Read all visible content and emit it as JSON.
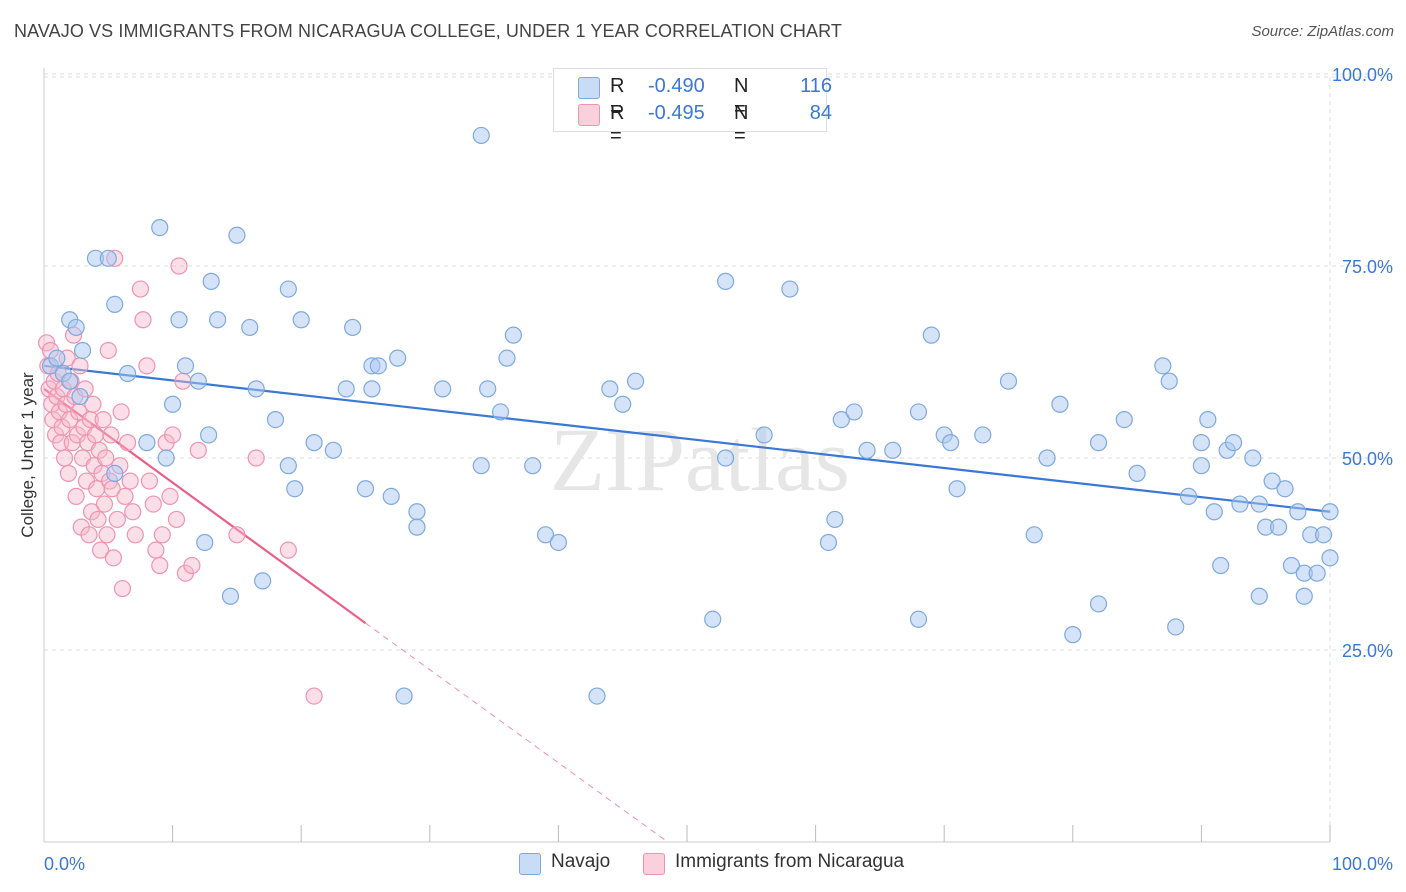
{
  "title": "NAVAJO VS IMMIGRANTS FROM NICARAGUA COLLEGE, UNDER 1 YEAR CORRELATION CHART",
  "source": "Source: ZipAtlas.com",
  "watermark": "ZIPatlas",
  "legend": {
    "rows": [
      {
        "r_label": "R =",
        "r_value": "-0.490",
        "n_label": "N =",
        "n_value": "116"
      },
      {
        "r_label": "R =",
        "r_value": "-0.495",
        "n_label": "N =",
        "n_value": "84"
      }
    ]
  },
  "bottom_legend": {
    "navajo": "Navajo",
    "nicaragua": "Immigrants from Nicaragua"
  },
  "colors": {
    "navajo_fill": "#aac8f0",
    "navajo_stroke": "#7ea9df",
    "navajo_line": "#3a78d6",
    "nic_fill": "#f7b9cb",
    "nic_stroke": "#ef93af",
    "nic_line": "#e8608a",
    "grid": "#dddddd",
    "tick_label": "#3a78d6"
  },
  "chart_data": {
    "type": "scatter",
    "title": "NAVAJO VS IMMIGRANTS FROM NICARAGUA COLLEGE, UNDER 1 YEAR CORRELATION CHART",
    "xlabel": "",
    "ylabel": "College, Under 1 year",
    "xlim": [
      0,
      100
    ],
    "ylim": [
      0,
      105
    ],
    "x_tick_labels": [
      "0.0%",
      "100.0%"
    ],
    "y_ticks": [
      25,
      50,
      75,
      100
    ],
    "y_tick_labels": [
      "25.0%",
      "50.0%",
      "75.0%",
      "100.0%"
    ],
    "grid": true,
    "legend_position": "top-center",
    "series": [
      {
        "name": "Navajo",
        "points": [
          [
            0.5,
            62
          ],
          [
            1,
            63
          ],
          [
            1.5,
            61
          ],
          [
            2,
            60
          ],
          [
            2,
            68
          ],
          [
            2.5,
            67
          ],
          [
            2.8,
            58
          ],
          [
            3,
            64
          ],
          [
            4,
            76
          ],
          [
            5,
            76
          ],
          [
            5.5,
            70
          ],
          [
            5.5,
            48
          ],
          [
            6.5,
            61
          ],
          [
            8,
            52
          ],
          [
            9,
            80
          ],
          [
            9.5,
            50
          ],
          [
            10,
            57
          ],
          [
            10.5,
            68
          ],
          [
            11,
            62
          ],
          [
            12,
            60
          ],
          [
            12.5,
            39
          ],
          [
            12.8,
            53
          ],
          [
            13,
            73
          ],
          [
            13.5,
            68
          ],
          [
            14.5,
            32
          ],
          [
            15,
            79
          ],
          [
            16,
            67
          ],
          [
            16.5,
            59
          ],
          [
            17,
            34
          ],
          [
            18,
            55
          ],
          [
            19,
            72
          ],
          [
            19,
            49
          ],
          [
            19.5,
            46
          ],
          [
            20,
            68
          ],
          [
            21,
            52
          ],
          [
            22.5,
            51
          ],
          [
            23.5,
            59
          ],
          [
            24,
            67
          ],
          [
            25,
            46
          ],
          [
            25.5,
            59
          ],
          [
            25.5,
            62
          ],
          [
            26,
            62
          ],
          [
            27,
            45
          ],
          [
            27.5,
            63
          ],
          [
            28,
            19
          ],
          [
            29,
            43
          ],
          [
            29,
            41
          ],
          [
            31,
            59
          ],
          [
            34,
            92
          ],
          [
            34,
            49
          ],
          [
            34.5,
            59
          ],
          [
            35.5,
            56
          ],
          [
            36,
            63
          ],
          [
            36.5,
            66
          ],
          [
            38,
            49
          ],
          [
            39,
            40
          ],
          [
            40,
            39
          ],
          [
            43,
            19
          ],
          [
            44,
            59
          ],
          [
            45,
            57
          ],
          [
            46,
            60
          ],
          [
            52,
            29
          ],
          [
            53,
            50
          ],
          [
            53,
            73
          ],
          [
            56,
            53
          ],
          [
            58,
            72
          ],
          [
            61,
            39
          ],
          [
            61.5,
            42
          ],
          [
            62,
            55
          ],
          [
            63,
            56
          ],
          [
            64,
            51
          ],
          [
            66,
            51
          ],
          [
            68,
            56
          ],
          [
            68,
            29
          ],
          [
            69,
            66
          ],
          [
            70,
            53
          ],
          [
            70.5,
            52
          ],
          [
            71,
            46
          ],
          [
            73,
            53
          ],
          [
            75,
            60
          ],
          [
            77,
            40
          ],
          [
            78,
            50
          ],
          [
            79,
            57
          ],
          [
            80,
            27
          ],
          [
            82,
            52
          ],
          [
            82,
            31
          ],
          [
            84,
            55
          ],
          [
            85,
            48
          ],
          [
            87,
            62
          ],
          [
            87.5,
            60
          ],
          [
            88,
            28
          ],
          [
            89,
            45
          ],
          [
            90,
            52
          ],
          [
            90,
            49
          ],
          [
            90.5,
            55
          ],
          [
            91,
            43
          ],
          [
            91.5,
            36
          ],
          [
            92,
            51
          ],
          [
            92.5,
            52
          ],
          [
            93,
            44
          ],
          [
            94,
            50
          ],
          [
            94.5,
            32
          ],
          [
            94.5,
            44
          ],
          [
            95,
            41
          ],
          [
            95.5,
            47
          ],
          [
            96,
            41
          ],
          [
            96.5,
            46
          ],
          [
            97,
            36
          ],
          [
            97.5,
            43
          ],
          [
            98,
            32
          ],
          [
            98,
            35
          ],
          [
            98.5,
            40
          ],
          [
            99,
            35
          ],
          [
            99.5,
            40
          ],
          [
            100,
            37
          ],
          [
            100,
            43
          ]
        ]
      },
      {
        "name": "Immigrants from Nicaragua",
        "points": [
          [
            0.2,
            65
          ],
          [
            0.3,
            62
          ],
          [
            0.4,
            59
          ],
          [
            0.5,
            64
          ],
          [
            0.6,
            57
          ],
          [
            0.7,
            55
          ],
          [
            0.8,
            60
          ],
          [
            0.9,
            53
          ],
          [
            1,
            58
          ],
          [
            1.1,
            61
          ],
          [
            1.2,
            56
          ],
          [
            1.3,
            52
          ],
          [
            1.4,
            54
          ],
          [
            1.5,
            59
          ],
          [
            1.6,
            50
          ],
          [
            1.7,
            57
          ],
          [
            1.8,
            63
          ],
          [
            1.9,
            48
          ],
          [
            2,
            55
          ],
          [
            2.1,
            60
          ],
          [
            2.2,
            52
          ],
          [
            2.3,
            66
          ],
          [
            2.4,
            58
          ],
          [
            2.5,
            45
          ],
          [
            2.6,
            53
          ],
          [
            2.7,
            56
          ],
          [
            2.8,
            62
          ],
          [
            2.9,
            41
          ],
          [
            3,
            50
          ],
          [
            3.1,
            54
          ],
          [
            3.2,
            59
          ],
          [
            3.3,
            47
          ],
          [
            3.4,
            52
          ],
          [
            3.5,
            40
          ],
          [
            3.6,
            55
          ],
          [
            3.7,
            43
          ],
          [
            3.8,
            57
          ],
          [
            3.9,
            49
          ],
          [
            4,
            53
          ],
          [
            4.1,
            46
          ],
          [
            4.2,
            42
          ],
          [
            4.3,
            51
          ],
          [
            4.4,
            38
          ],
          [
            4.5,
            48
          ],
          [
            4.6,
            55
          ],
          [
            4.7,
            44
          ],
          [
            4.8,
            50
          ],
          [
            4.9,
            40
          ],
          [
            5,
            64
          ],
          [
            5.1,
            47
          ],
          [
            5.2,
            53
          ],
          [
            5.3,
            46
          ],
          [
            5.4,
            37
          ],
          [
            5.5,
            76
          ],
          [
            5.7,
            42
          ],
          [
            5.9,
            49
          ],
          [
            6,
            56
          ],
          [
            6.1,
            33
          ],
          [
            6.3,
            45
          ],
          [
            6.5,
            52
          ],
          [
            6.7,
            47
          ],
          [
            6.9,
            43
          ],
          [
            7.1,
            40
          ],
          [
            7.5,
            72
          ],
          [
            7.7,
            68
          ],
          [
            8,
            62
          ],
          [
            8.2,
            47
          ],
          [
            8.5,
            44
          ],
          [
            8.7,
            38
          ],
          [
            9,
            36
          ],
          [
            9.2,
            40
          ],
          [
            9.5,
            52
          ],
          [
            9.8,
            45
          ],
          [
            10,
            53
          ],
          [
            10.3,
            42
          ],
          [
            10.5,
            75
          ],
          [
            10.8,
            60
          ],
          [
            11,
            35
          ],
          [
            11.5,
            36
          ],
          [
            12,
            51
          ],
          [
            15,
            40
          ],
          [
            16.5,
            50
          ],
          [
            19,
            38
          ],
          [
            21,
            19
          ]
        ]
      }
    ],
    "trendlines": [
      {
        "series": "Navajo",
        "x": [
          0,
          100
        ],
        "y": [
          62,
          43
        ],
        "style": "solid"
      },
      {
        "series": "Immigrants from Nicaragua",
        "x": [
          0,
          25
        ],
        "y": [
          59,
          28.5
        ],
        "style": "solid"
      },
      {
        "series": "Immigrants from Nicaragua",
        "x": [
          25,
          48.5
        ],
        "y": [
          28.5,
          0
        ],
        "style": "dashed"
      }
    ]
  }
}
